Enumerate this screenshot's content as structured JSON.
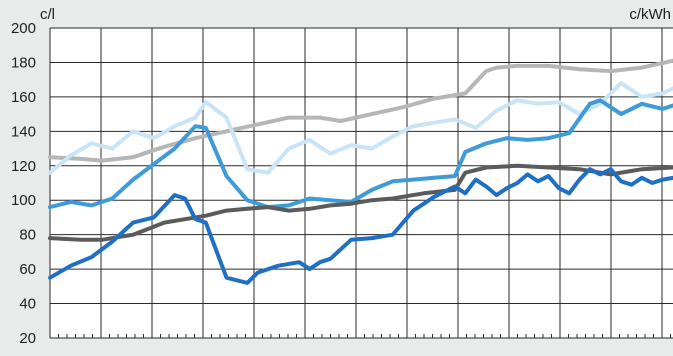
{
  "chart_data": {
    "type": "line",
    "y_unit_left": "c/l",
    "y_unit_right": "c/kWh",
    "ylim": [
      20,
      200
    ],
    "y_ticks": [
      20,
      40,
      60,
      80,
      100,
      120,
      140,
      160,
      180,
      200
    ],
    "xlim": [
      0,
      60
    ],
    "grid": true,
    "series": [
      {
        "color": "#b5b6b8",
        "x": [
          0,
          3,
          5,
          8,
          11,
          14,
          17,
          20,
          23,
          26,
          28,
          31,
          34,
          37,
          40,
          42,
          43,
          45,
          48,
          51,
          54,
          57,
          60
        ],
        "values": [
          125,
          124,
          123,
          125,
          131,
          136,
          140,
          144,
          148,
          148,
          146,
          150,
          154,
          159,
          162,
          175,
          177,
          178,
          178,
          176,
          175,
          177,
          181
        ]
      },
      {
        "color": "#c9e4f6",
        "x": [
          0,
          2,
          4,
          6,
          8,
          10,
          12,
          14,
          15,
          17,
          19,
          21,
          23,
          25,
          27,
          29,
          31,
          33,
          35,
          37,
          39,
          41,
          43,
          45,
          47,
          49,
          51,
          53,
          55,
          57,
          59,
          60
        ],
        "values": [
          116,
          126,
          133,
          130,
          140,
          136,
          143,
          148,
          157,
          148,
          118,
          116,
          130,
          135,
          127,
          132,
          130,
          137,
          143,
          145,
          147,
          142,
          152,
          158,
          156,
          157,
          150,
          156,
          168,
          160,
          162,
          165
        ]
      },
      {
        "color": "#3f9ad8",
        "x": [
          0,
          2,
          4,
          6,
          8,
          10,
          12,
          14,
          15,
          17,
          19,
          21,
          23,
          25,
          27,
          29,
          31,
          33,
          35,
          37,
          39,
          40,
          42,
          44,
          46,
          48,
          50,
          52,
          53,
          55,
          57,
          59,
          60
        ],
        "values": [
          96,
          99,
          97,
          101,
          112,
          121,
          130,
          143,
          142,
          114,
          100,
          96,
          97,
          101,
          100,
          99,
          106,
          111,
          112,
          113,
          114,
          128,
          133,
          136,
          135,
          136,
          139,
          156,
          158,
          150,
          156,
          153,
          155
        ]
      },
      {
        "color": "#5b5b5c",
        "x": [
          0,
          3,
          5,
          8,
          11,
          13,
          15,
          17,
          19,
          21,
          23,
          25,
          27,
          29,
          31,
          33,
          36,
          39,
          40,
          42,
          45,
          48,
          51,
          54,
          57,
          60
        ],
        "values": [
          78,
          77,
          77,
          80,
          87,
          89,
          91,
          94,
          95,
          96,
          94,
          95,
          97,
          98,
          100,
          101,
          104,
          106,
          116,
          119,
          120,
          119,
          118,
          115,
          118,
          119
        ]
      },
      {
        "color": "#1f6fc5",
        "x": [
          0,
          2,
          4,
          6,
          8,
          10,
          12,
          13,
          14,
          15,
          17,
          19,
          20,
          22,
          24,
          25,
          26,
          27,
          29,
          31,
          33,
          35,
          37,
          39,
          40,
          41,
          42,
          43,
          44,
          45,
          46,
          47,
          48,
          49,
          50,
          51,
          52,
          53,
          54,
          55,
          56,
          57,
          58,
          59,
          60
        ],
        "values": [
          55,
          62,
          67,
          76,
          87,
          90,
          103,
          101,
          89,
          87,
          55,
          52,
          58,
          62,
          64,
          60,
          64,
          66,
          77,
          78,
          80,
          94,
          102,
          108,
          104,
          112,
          108,
          103,
          107,
          110,
          115,
          111,
          114,
          107,
          104,
          112,
          118,
          115,
          118,
          111,
          109,
          113,
          110,
          112,
          113
        ]
      }
    ]
  }
}
